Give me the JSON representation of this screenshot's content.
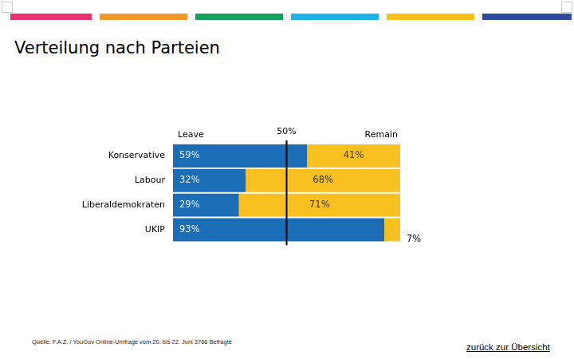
{
  "source": "Quelle: F.A.Z. / YouGov Online-Umfrage vom 20. bis 22. Juni 3766 Befragte",
  "link": "zurück zur Übersicht",
  "chart_data": {
    "type": "bar",
    "title": "Verteilung nach Parteien",
    "orientation": "horizontal",
    "stacked": true,
    "categories": [
      "Konservative",
      "Labour",
      "Liberaldemokraten",
      "UKIP"
    ],
    "series": [
      {
        "name": "Leave",
        "color": "#1b6db6",
        "values": [
          59,
          32,
          29,
          93
        ],
        "value_labels": [
          "59%",
          "32%",
          "29%",
          "93%"
        ]
      },
      {
        "name": "Remain",
        "color": "#f9c11f",
        "values": [
          41,
          68,
          71,
          7
        ],
        "value_labels": [
          "41%",
          "68%",
          "71%",
          "7%"
        ]
      }
    ],
    "xlim": [
      0,
      100
    ],
    "annotations": [
      {
        "text": "50%",
        "x": 50
      }
    ],
    "data_labels": true,
    "tick_labels": "y",
    "grid": false
  }
}
